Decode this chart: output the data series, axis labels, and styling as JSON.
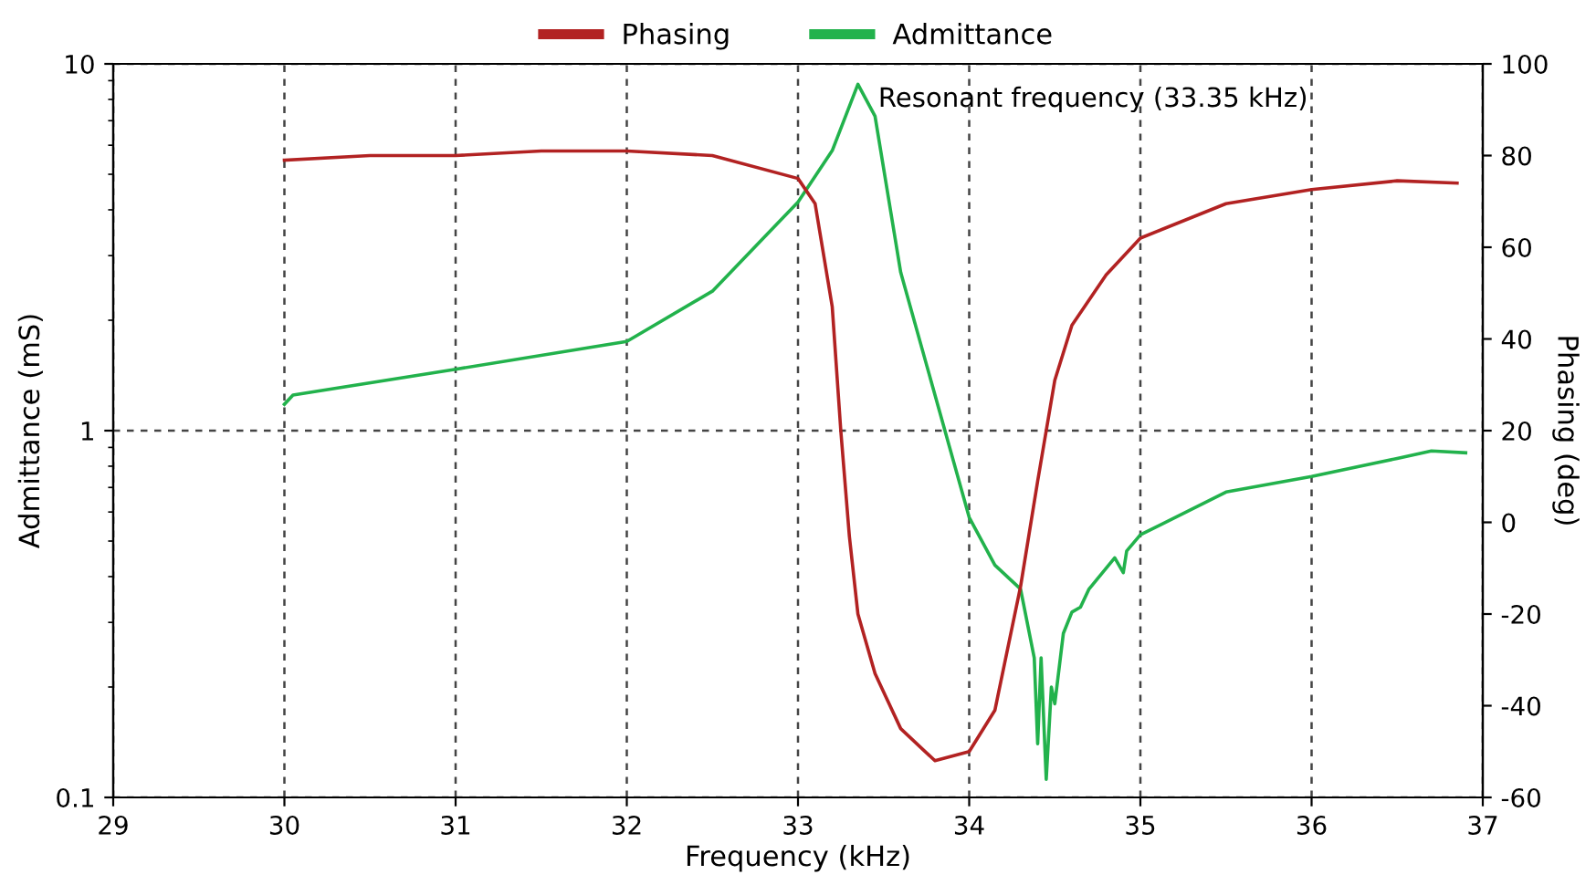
{
  "chart_data": {
    "type": "line",
    "xlabel": "Frequency (kHz)",
    "ylabel": "Admittance (mS)",
    "y2label": "Phasing (deg)",
    "xlim": [
      29,
      37
    ],
    "xticks": [
      29,
      30,
      31,
      32,
      33,
      34,
      35,
      36,
      37
    ],
    "ylim": [
      0.1,
      10
    ],
    "yticks": [
      0.1,
      1,
      10
    ],
    "log": "y",
    "y2lim": [
      -60,
      100
    ],
    "y2ticks": [
      -60,
      -40,
      -20,
      0,
      20,
      40,
      60,
      80,
      100
    ],
    "grid": true,
    "legend": "top",
    "line_style": "solid",
    "marker": "none",
    "annotations": [
      {
        "text": "Resonant frequency (33.35 kHz)",
        "x": 33.35,
        "y": 8.8
      }
    ],
    "series": [
      {
        "name": "Phasing",
        "color": "#b22222",
        "axis": "y2",
        "x": [
          30,
          30.5,
          31,
          31.5,
          32,
          32.5,
          33,
          33.1,
          33.2,
          33.25,
          33.3,
          33.35,
          33.45,
          33.6,
          33.8,
          34.0,
          34.15,
          34.3,
          34.4,
          34.5,
          34.6,
          34.8,
          35.0,
          35.5,
          36.0,
          36.5,
          36.85
        ],
        "values": [
          79,
          80,
          80,
          81,
          81,
          80,
          75,
          69.5,
          47,
          20,
          -3,
          -20,
          -33,
          -45,
          -52,
          -50,
          -41,
          -14,
          9,
          31,
          43,
          54,
          62,
          69.5,
          72.6,
          74.5,
          74
        ]
      },
      {
        "name": "Admittance",
        "color": "#22b24c",
        "x": [
          30,
          30.05,
          31,
          32,
          32.5,
          33,
          33.2,
          33.35,
          33.45,
          33.6,
          34.0,
          34.15,
          34.3,
          34.38,
          34.4,
          34.42,
          34.45,
          34.48,
          34.5,
          34.55,
          34.6,
          34.65,
          34.7,
          34.85,
          34.9,
          34.92,
          35.0,
          35.5,
          36.0,
          36.5,
          36.7,
          36.9
        ],
        "values": [
          1.18,
          1.25,
          1.47,
          1.75,
          2.4,
          4.2,
          5.8,
          8.8,
          7.2,
          2.7,
          0.58,
          0.43,
          0.37,
          0.24,
          0.14,
          0.24,
          0.112,
          0.2,
          0.18,
          0.28,
          0.32,
          0.33,
          0.37,
          0.45,
          0.41,
          0.47,
          0.52,
          0.68,
          0.75,
          0.84,
          0.88,
          0.87
        ]
      }
    ]
  }
}
